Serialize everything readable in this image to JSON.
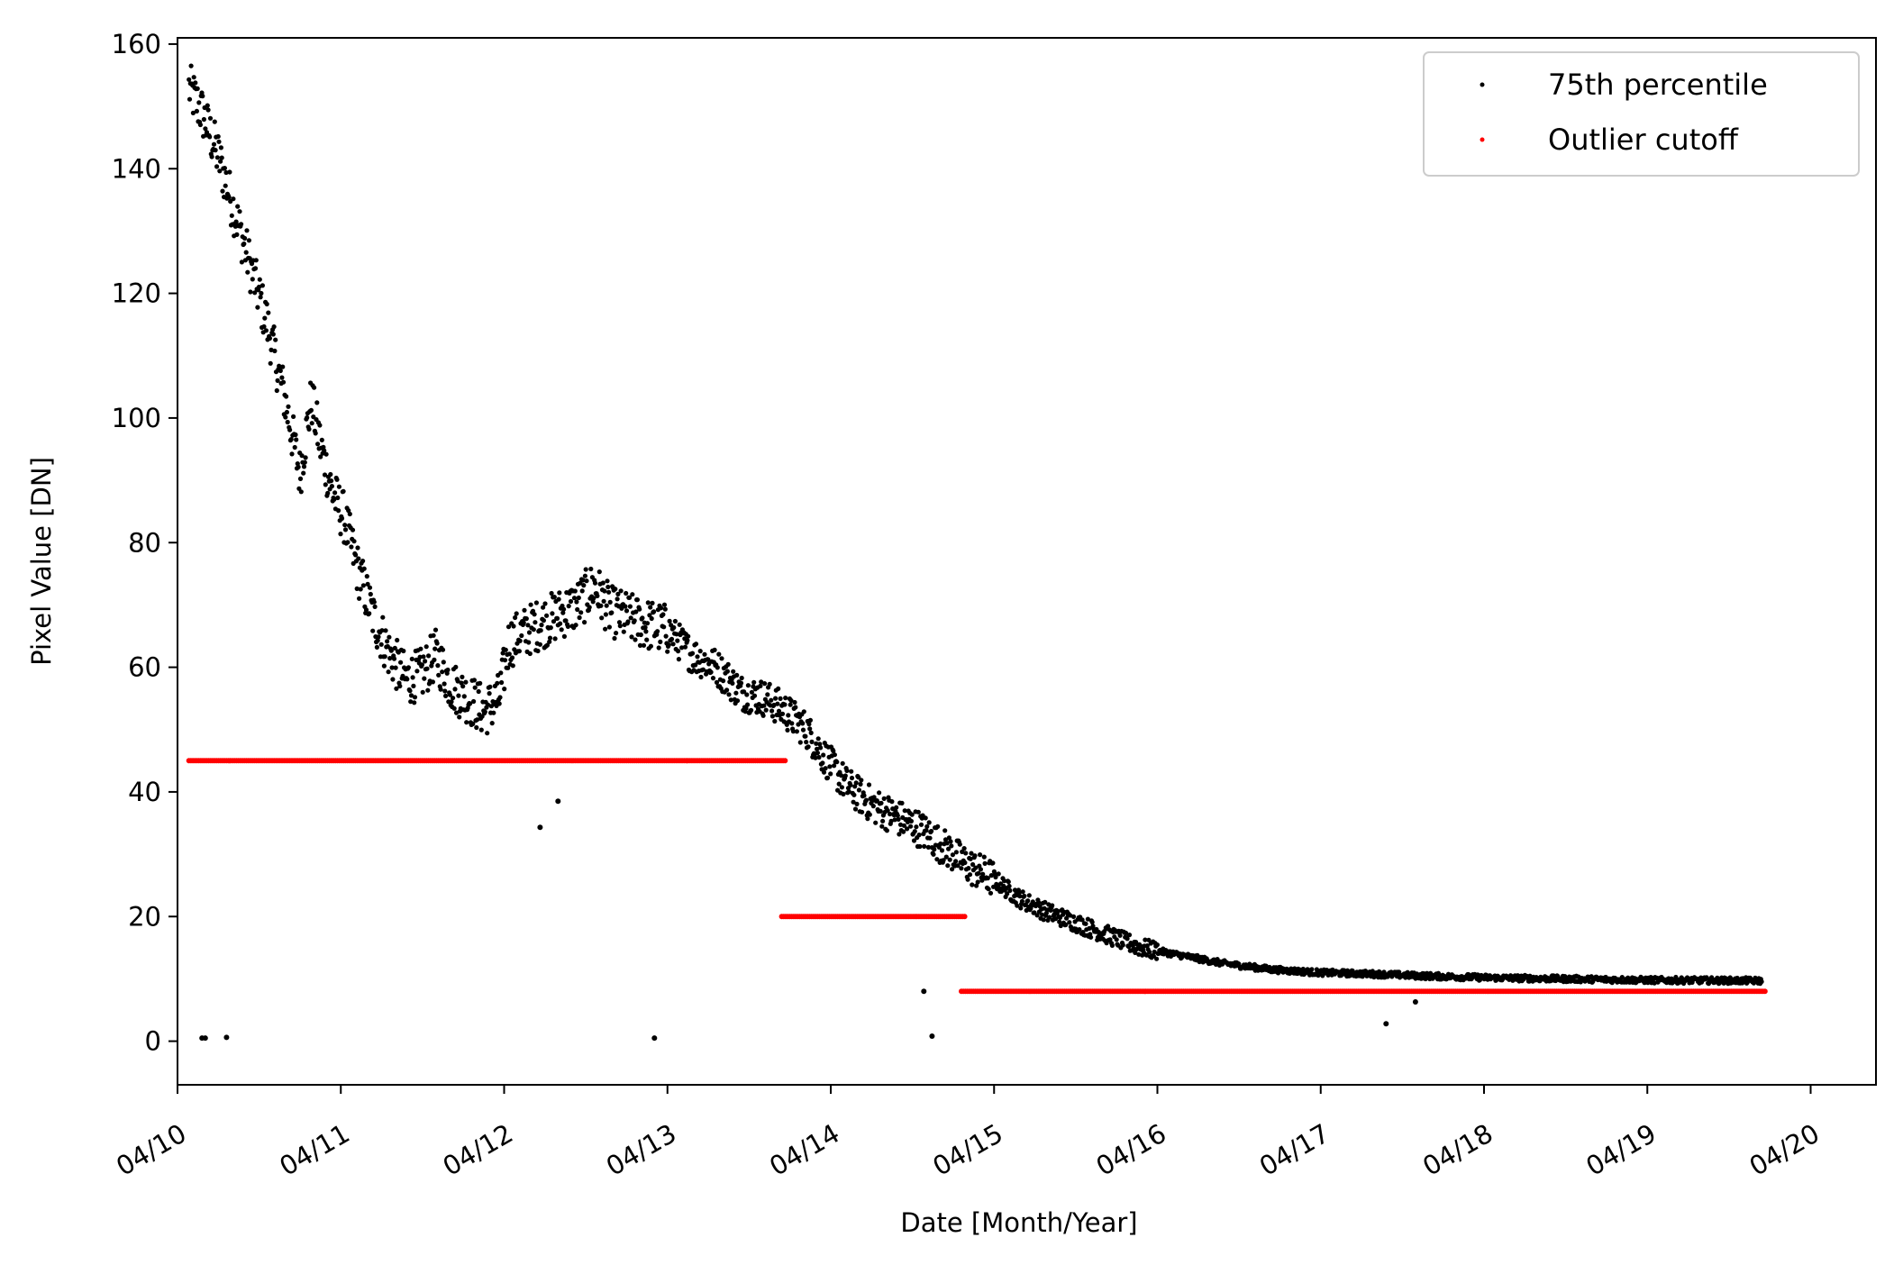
{
  "chart_data": {
    "type": "scatter",
    "xlabel": "Date [Month/Year]",
    "ylabel": "Pixel Value [DN]",
    "xlim": [
      0,
      10.4
    ],
    "ylim": [
      -7,
      161
    ],
    "x_ticks": [
      {
        "value": 0,
        "label": "04/10"
      },
      {
        "value": 1,
        "label": "04/11"
      },
      {
        "value": 2,
        "label": "04/12"
      },
      {
        "value": 3,
        "label": "04/13"
      },
      {
        "value": 4,
        "label": "04/14"
      },
      {
        "value": 5,
        "label": "04/15"
      },
      {
        "value": 6,
        "label": "04/16"
      },
      {
        "value": 7,
        "label": "04/17"
      },
      {
        "value": 8,
        "label": "04/18"
      },
      {
        "value": 9,
        "label": "04/19"
      },
      {
        "value": 10,
        "label": "04/20"
      }
    ],
    "y_ticks": [
      {
        "value": 0,
        "label": "0"
      },
      {
        "value": 20,
        "label": "20"
      },
      {
        "value": 40,
        "label": "40"
      },
      {
        "value": 60,
        "label": "60"
      },
      {
        "value": 80,
        "label": "80"
      },
      {
        "value": 100,
        "label": "100"
      },
      {
        "value": 120,
        "label": "120"
      },
      {
        "value": 140,
        "label": "140"
      },
      {
        "value": 160,
        "label": "160"
      }
    ],
    "legend_position": "top-right",
    "grid": false,
    "series": [
      {
        "name": "75th percentile",
        "color": "#000000",
        "marker": "dot",
        "trend": [
          [
            0.07,
            153
          ],
          [
            0.15,
            149
          ],
          [
            0.25,
            142
          ],
          [
            0.35,
            133
          ],
          [
            0.45,
            124
          ],
          [
            0.55,
            115
          ],
          [
            0.65,
            104
          ],
          [
            0.75,
            91
          ],
          [
            0.82,
            103
          ],
          [
            0.88,
            95
          ],
          [
            0.95,
            88
          ],
          [
            1.02,
            84
          ],
          [
            1.1,
            76
          ],
          [
            1.2,
            68
          ],
          [
            1.3,
            62
          ],
          [
            1.4,
            58
          ],
          [
            1.5,
            59
          ],
          [
            1.58,
            62
          ],
          [
            1.68,
            57
          ],
          [
            1.78,
            55
          ],
          [
            1.88,
            53
          ],
          [
            1.97,
            55
          ],
          [
            2.03,
            64
          ],
          [
            2.15,
            66
          ],
          [
            2.3,
            68
          ],
          [
            2.45,
            70
          ],
          [
            2.55,
            73
          ],
          [
            2.65,
            69
          ],
          [
            2.75,
            68
          ],
          [
            2.85,
            67
          ],
          [
            3.0,
            66
          ],
          [
            3.15,
            62
          ],
          [
            3.3,
            60
          ],
          [
            3.45,
            56
          ],
          [
            3.6,
            55
          ],
          [
            3.72,
            53
          ],
          [
            3.85,
            50
          ],
          [
            3.95,
            46
          ],
          [
            4.1,
            41
          ],
          [
            4.25,
            38
          ],
          [
            4.4,
            36
          ],
          [
            4.55,
            34
          ],
          [
            4.7,
            31
          ],
          [
            4.85,
            28
          ],
          [
            5.0,
            26
          ],
          [
            5.15,
            23
          ],
          [
            5.3,
            21
          ],
          [
            5.5,
            19
          ],
          [
            5.7,
            17
          ],
          [
            5.9,
            15
          ],
          [
            6.1,
            14
          ],
          [
            6.4,
            12.5
          ],
          [
            6.7,
            11.5
          ],
          [
            7.0,
            11
          ],
          [
            7.3,
            10.8
          ],
          [
            7.6,
            10.5
          ],
          [
            8.0,
            10.2
          ],
          [
            8.5,
            10
          ],
          [
            9.0,
            9.8
          ],
          [
            9.7,
            9.7
          ]
        ],
        "isolated_points": [
          [
            0.15,
            0.5
          ],
          [
            0.17,
            0.5
          ],
          [
            0.3,
            0.6
          ],
          [
            2.22,
            34.3
          ],
          [
            2.33,
            38.5
          ],
          [
            2.92,
            0.5
          ],
          [
            4.57,
            8
          ],
          [
            4.62,
            0.8
          ],
          [
            7.4,
            2.8
          ],
          [
            7.58,
            6.3
          ]
        ]
      },
      {
        "name": "Outlier cutoff",
        "color": "#ff0000",
        "marker": "dot",
        "segments": [
          {
            "x_start": 0.07,
            "x_end": 3.72,
            "y": 45
          },
          {
            "x_start": 3.7,
            "x_end": 4.82,
            "y": 20
          },
          {
            "x_start": 4.8,
            "x_end": 9.72,
            "y": 8
          }
        ]
      }
    ]
  }
}
